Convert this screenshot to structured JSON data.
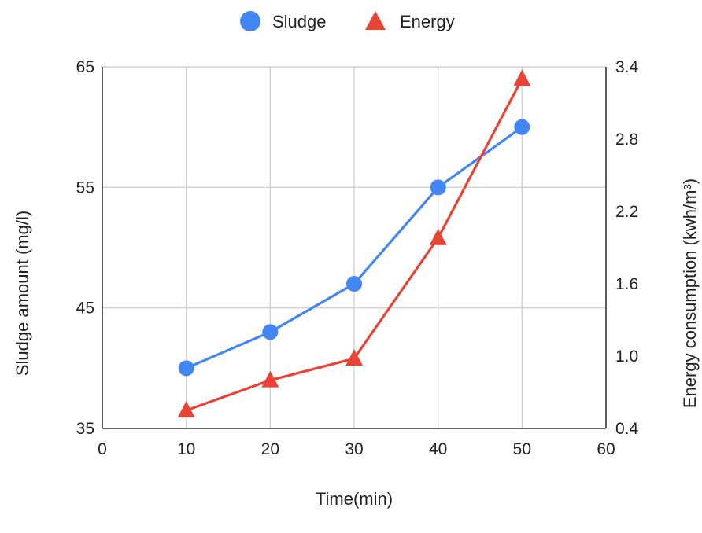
{
  "chart_data": {
    "type": "line",
    "x": [
      10,
      20,
      30,
      40,
      50
    ],
    "xlabel": "Time(min)",
    "xlim": [
      0,
      60
    ],
    "xticks": [
      "0",
      "10",
      "20",
      "30",
      "40",
      "50",
      "60"
    ],
    "ylabel_left": "Sludge amount (mg/l)",
    "ylim_left": [
      35,
      65
    ],
    "yticks_left": [
      "35",
      "45",
      "55",
      "65"
    ],
    "ylabel_right": "Energy consumption  (kwh/m³)",
    "ylim_right": [
      0.4,
      3.4
    ],
    "yticks_right": [
      "0.4",
      "1.0",
      "1.6",
      "2.2",
      "2.8",
      "3.4"
    ],
    "grid": true,
    "legend_position": "top-center",
    "series": [
      {
        "name": "Sludge",
        "axis": "left",
        "marker": "circle",
        "color": "#4285F4",
        "values": [
          40,
          43,
          47,
          55,
          60
        ]
      },
      {
        "name": "Energy",
        "axis": "right",
        "marker": "triangle",
        "color": "#EA4335",
        "values": [
          0.55,
          0.8,
          0.98,
          1.98,
          3.3
        ]
      }
    ]
  }
}
